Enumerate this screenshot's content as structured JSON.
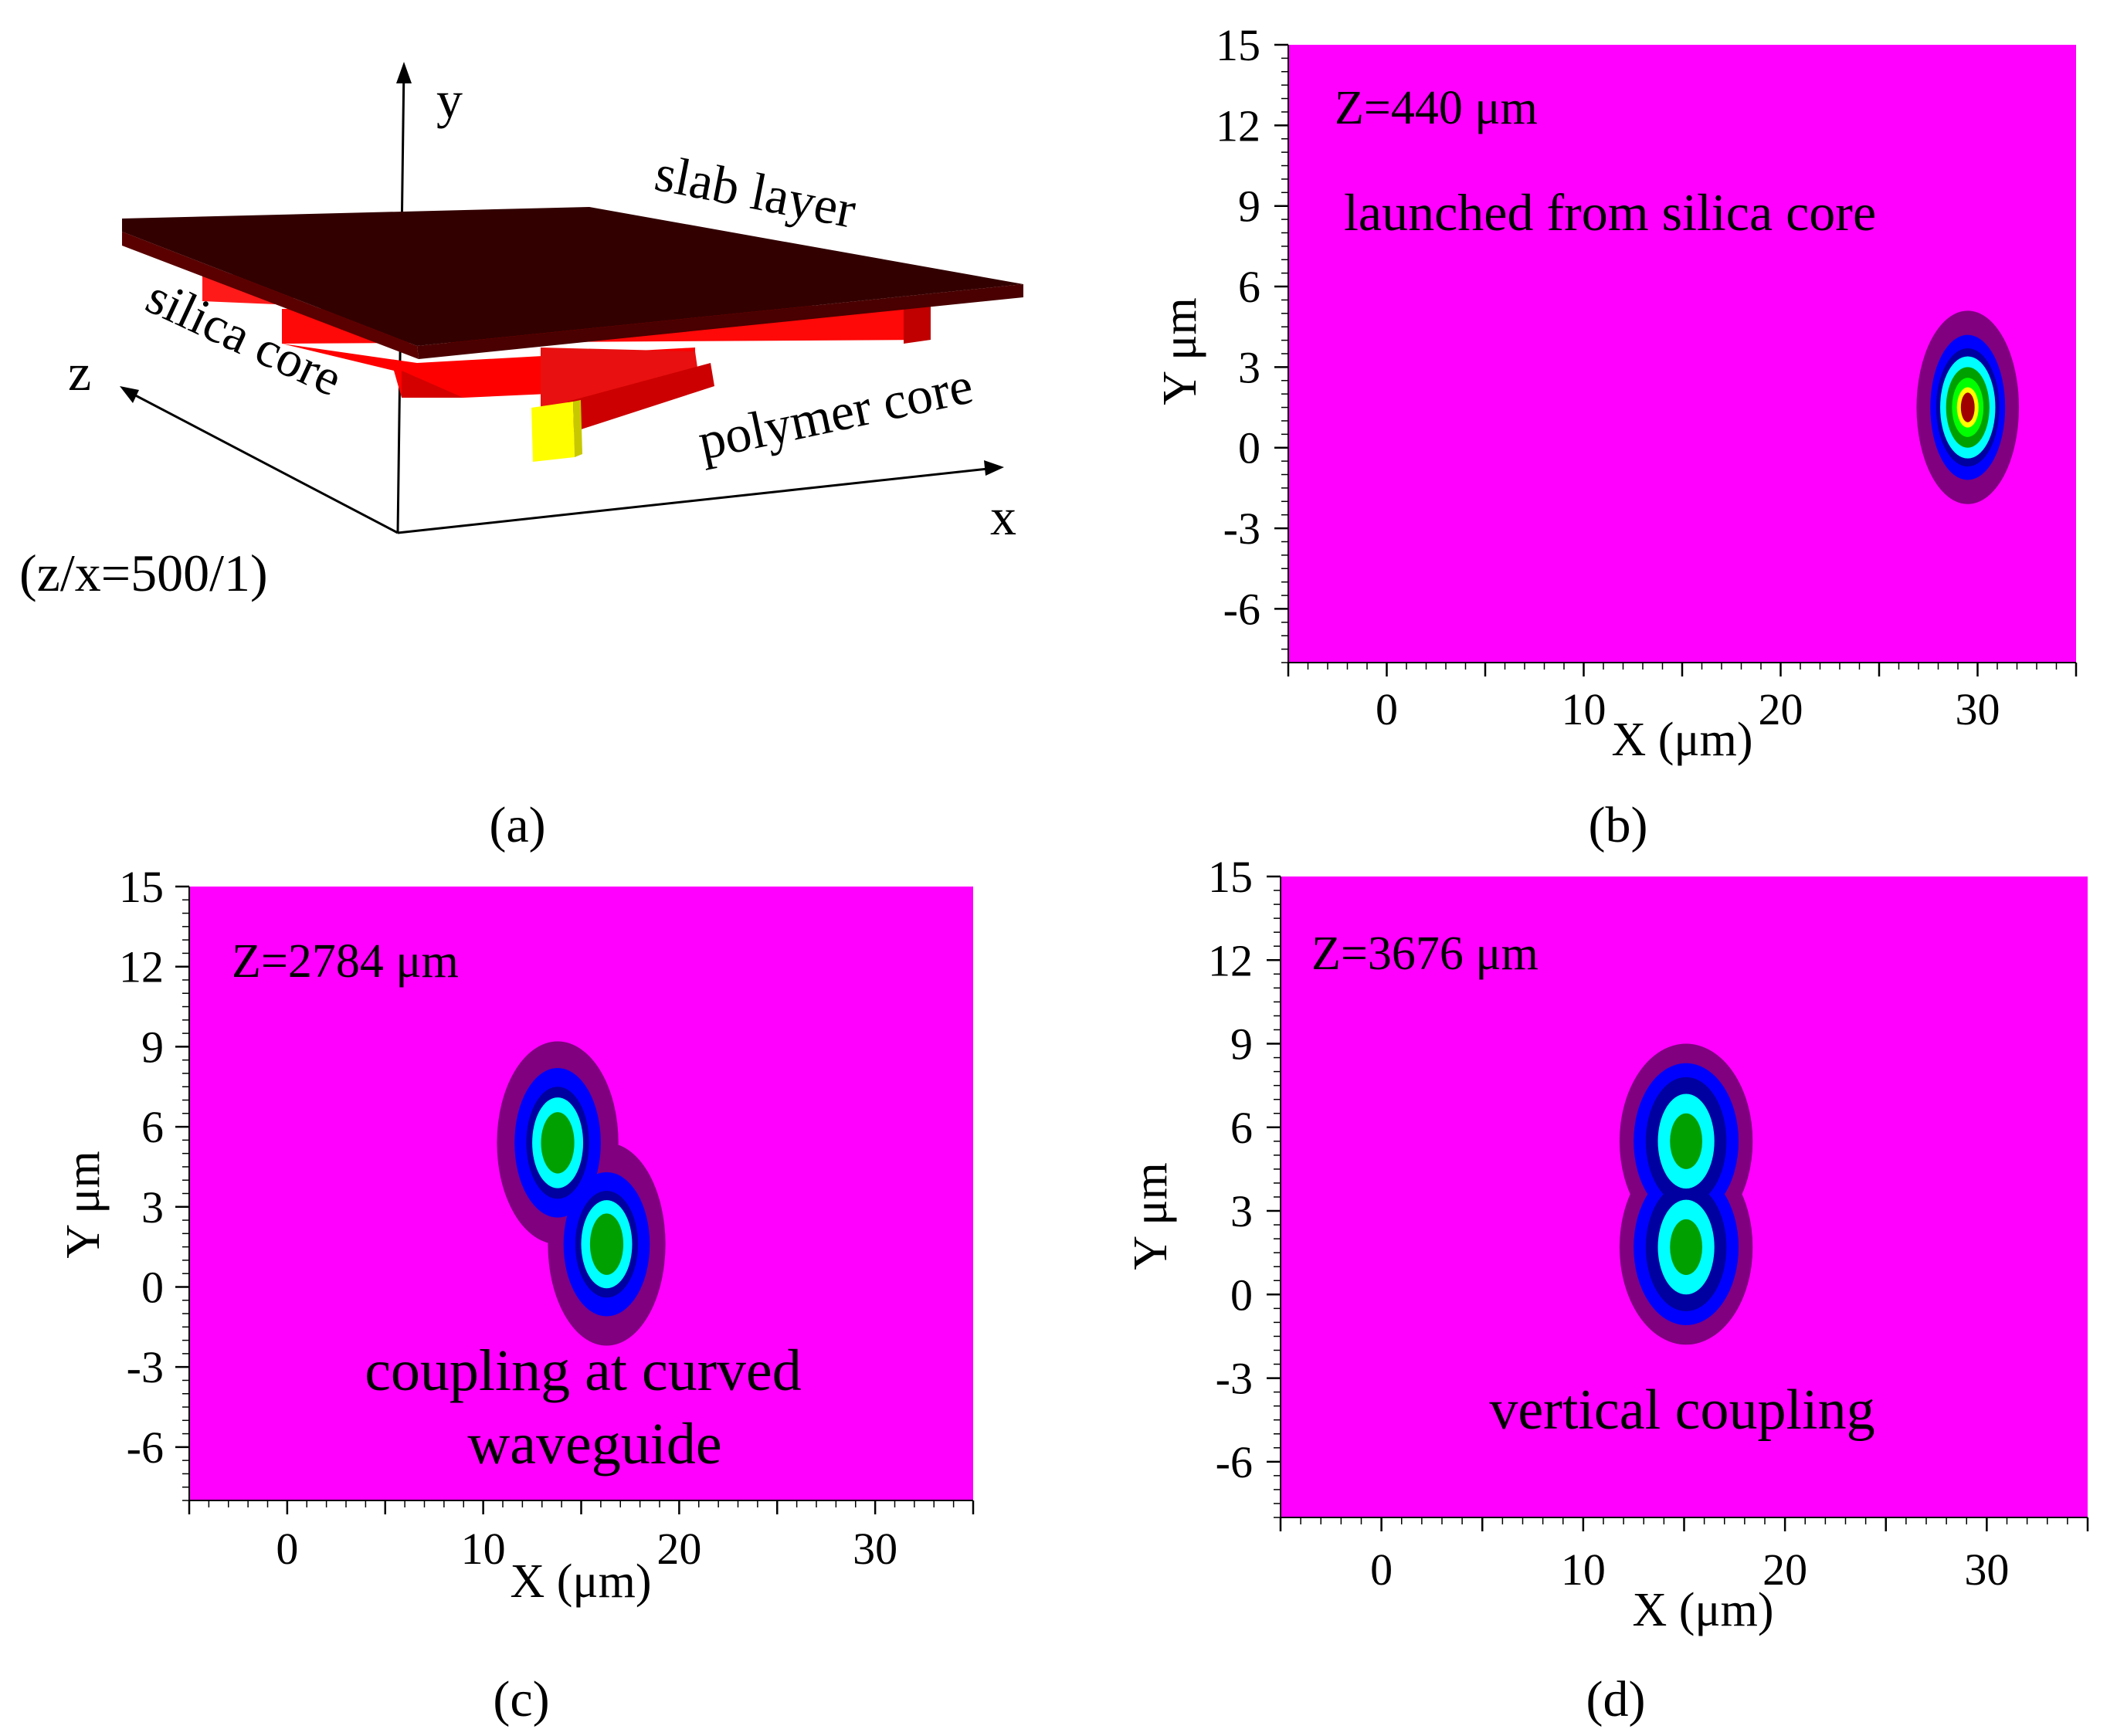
{
  "colors": {
    "background_field": "#ff00ff",
    "contour_levels": [
      "#800080",
      "#0000ff",
      "#0000a0",
      "#00ffff",
      "#00a000",
      "#00ff00",
      "#ffff00",
      "#a00000"
    ],
    "slab": "#3a0000",
    "silica_core": "#ff0a0a",
    "polymer_core": "#e01010",
    "polymer_end": "#ffff00"
  },
  "schematic": {
    "caption": "(a)",
    "axis_y": "y",
    "axis_x": "x",
    "axis_z": "z",
    "label_slab": "slab layer",
    "label_silica": "silica core",
    "label_polymer": "polymer core",
    "scale_note": "(z/x=500/1)"
  },
  "chart_data": [
    {
      "type": "heatmap",
      "id": "b",
      "caption": "(b)",
      "annotation": "Z=440 μm",
      "description": "launched from silica core",
      "description_lines": [
        "launched from silica core"
      ],
      "xlabel": "X (μm)",
      "ylabel": "Y μm",
      "xlim": [
        -5,
        35
      ],
      "ylim": [
        -8,
        15
      ],
      "xticks": [
        0,
        10,
        20,
        30
      ],
      "yticks": [
        15,
        12,
        9,
        6,
        3,
        0,
        -3,
        -6
      ],
      "modes": [
        {
          "x": 29.5,
          "y": 1.5,
          "levels": [
            {
              "rx": 2.6,
              "ry": 3.6
            },
            {
              "rx": 1.9,
              "ry": 2.7
            },
            {
              "rx": 1.6,
              "ry": 2.2
            },
            {
              "rx": 1.4,
              "ry": 1.9
            },
            {
              "rx": 1.1,
              "ry": 1.5
            },
            {
              "rx": 0.8,
              "ry": 1.1
            },
            {
              "rx": 0.55,
              "ry": 0.75
            },
            {
              "rx": 0.35,
              "ry": 0.55
            }
          ]
        }
      ]
    },
    {
      "type": "heatmap",
      "id": "c",
      "caption": "(c)",
      "annotation": "Z=2784 μm",
      "description": "coupling at curved waveguide",
      "description_lines": [
        "coupling at curved",
        "waveguide"
      ],
      "xlabel": "X (μm)",
      "ylabel": "Y μm",
      "xlim": [
        -5,
        35
      ],
      "ylim": [
        -8,
        15
      ],
      "xticks": [
        0,
        10,
        20,
        30
      ],
      "yticks": [
        15,
        12,
        9,
        6,
        3,
        0,
        -3,
        -6
      ],
      "modes": [
        {
          "x": 13.8,
          "y": 5.4,
          "levels": [
            {
              "rx": 3.1,
              "ry": 3.8
            },
            {
              "rx": 2.2,
              "ry": 2.8
            },
            {
              "rx": 1.6,
              "ry": 2.1
            },
            {
              "rx": 1.3,
              "ry": 1.7
            },
            {
              "rx": 0.85,
              "ry": 1.15
            }
          ]
        },
        {
          "x": 16.3,
          "y": 1.6,
          "levels": [
            {
              "rx": 3.0,
              "ry": 3.8
            },
            {
              "rx": 2.2,
              "ry": 2.7
            },
            {
              "rx": 1.6,
              "ry": 2.0
            },
            {
              "rx": 1.3,
              "ry": 1.65
            },
            {
              "rx": 0.85,
              "ry": 1.15
            }
          ]
        }
      ]
    },
    {
      "type": "heatmap",
      "id": "d",
      "caption": "(d)",
      "annotation": "Z=3676 μm",
      "description": "vertical coupling",
      "description_lines": [
        "vertical coupling"
      ],
      "xlabel": "X (μm)",
      "ylabel": "Y μm",
      "xlim": [
        -5,
        35
      ],
      "ylim": [
        -8,
        15
      ],
      "xticks": [
        0,
        10,
        20,
        30
      ],
      "yticks": [
        15,
        12,
        9,
        6,
        3,
        0,
        -3,
        -6
      ],
      "modes": [
        {
          "x": 15.1,
          "y": 5.5,
          "levels": [
            {
              "rx": 3.3,
              "ry": 3.5
            },
            {
              "rx": 2.6,
              "ry": 2.8
            },
            {
              "rx": 2.0,
              "ry": 2.3
            },
            {
              "rx": 1.4,
              "ry": 1.7
            },
            {
              "rx": 0.8,
              "ry": 1.0
            }
          ]
        },
        {
          "x": 15.1,
          "y": 1.7,
          "levels": [
            {
              "rx": 3.3,
              "ry": 3.5
            },
            {
              "rx": 2.6,
              "ry": 2.8
            },
            {
              "rx": 2.0,
              "ry": 2.3
            },
            {
              "rx": 1.4,
              "ry": 1.7
            },
            {
              "rx": 0.8,
              "ry": 1.0
            }
          ]
        }
      ]
    }
  ]
}
